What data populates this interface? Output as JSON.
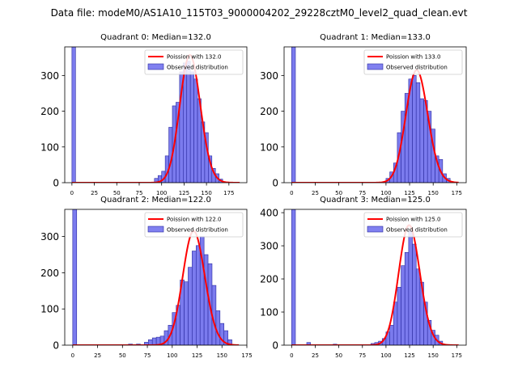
{
  "figure": {
    "title": "Data file: modeM0/AS1A10_115T03_9000004202_29228cztM0_level2_quad_clean.evt"
  },
  "colors": {
    "bar_fill": "#7b7bee",
    "bar_edge": "#2a2aa0",
    "legend_patch": "#8080f0",
    "poisson_line": "#ff0000"
  },
  "chart_data": [
    {
      "type": "bar",
      "title": "Quadrant 0: Median=132.0",
      "xlim": [
        -8,
        195
      ],
      "ylim": [
        0,
        380
      ],
      "xticks": [
        0,
        25,
        50,
        75,
        100,
        125,
        150,
        175
      ],
      "yticks": [
        0,
        100,
        200,
        300
      ],
      "legend": [
        "Poission with 132.0",
        "Observed distribution"
      ],
      "mean": 132.0,
      "bin_width": 4,
      "bins": [
        {
          "x": 0,
          "h": 380
        },
        {
          "x": 92,
          "h": 12
        },
        {
          "x": 96,
          "h": 20
        },
        {
          "x": 100,
          "h": 32
        },
        {
          "x": 104,
          "h": 75
        },
        {
          "x": 108,
          "h": 155
        },
        {
          "x": 112,
          "h": 215
        },
        {
          "x": 116,
          "h": 225
        },
        {
          "x": 120,
          "h": 310
        },
        {
          "x": 124,
          "h": 335
        },
        {
          "x": 128,
          "h": 340
        },
        {
          "x": 132,
          "h": 310
        },
        {
          "x": 136,
          "h": 290
        },
        {
          "x": 140,
          "h": 235
        },
        {
          "x": 144,
          "h": 170
        },
        {
          "x": 148,
          "h": 140
        },
        {
          "x": 152,
          "h": 75
        },
        {
          "x": 156,
          "h": 40
        },
        {
          "x": 160,
          "h": 25
        },
        {
          "x": 164,
          "h": 10
        }
      ]
    },
    {
      "type": "bar",
      "title": "Quadrant 1: Median=133.0",
      "xlim": [
        -8,
        185
      ],
      "ylim": [
        0,
        380
      ],
      "xticks": [
        0,
        25,
        50,
        75,
        100,
        125,
        150,
        175
      ],
      "yticks": [
        0,
        100,
        200,
        300
      ],
      "legend": [
        "Poission with 133.0",
        "Observed distribution"
      ],
      "mean": 133.0,
      "bin_width": 4,
      "bins": [
        {
          "x": 0,
          "h": 380
        },
        {
          "x": 100,
          "h": 12
        },
        {
          "x": 104,
          "h": 30
        },
        {
          "x": 108,
          "h": 55
        },
        {
          "x": 112,
          "h": 140
        },
        {
          "x": 116,
          "h": 200
        },
        {
          "x": 120,
          "h": 250
        },
        {
          "x": 124,
          "h": 290
        },
        {
          "x": 128,
          "h": 300
        },
        {
          "x": 132,
          "h": 280
        },
        {
          "x": 136,
          "h": 235
        },
        {
          "x": 140,
          "h": 230
        },
        {
          "x": 144,
          "h": 200
        },
        {
          "x": 148,
          "h": 150
        },
        {
          "x": 152,
          "h": 75
        },
        {
          "x": 156,
          "h": 65
        },
        {
          "x": 160,
          "h": 25
        },
        {
          "x": 164,
          "h": 12
        }
      ]
    },
    {
      "type": "bar",
      "title": "Quadrant 2: Median=122.0",
      "xlim": [
        -8,
        175
      ],
      "ylim": [
        0,
        375
      ],
      "xticks": [
        0,
        25,
        50,
        75,
        100,
        125,
        150,
        175
      ],
      "yticks": [
        0,
        100,
        200,
        300
      ],
      "legend": [
        "Poission with 122.0",
        "Observed distribution"
      ],
      "mean": 122.0,
      "bin_width": 4,
      "bins": [
        {
          "x": 0,
          "h": 375
        },
        {
          "x": 56,
          "h": 3
        },
        {
          "x": 64,
          "h": 3
        },
        {
          "x": 72,
          "h": 8
        },
        {
          "x": 76,
          "h": 15
        },
        {
          "x": 80,
          "h": 20
        },
        {
          "x": 84,
          "h": 22
        },
        {
          "x": 88,
          "h": 25
        },
        {
          "x": 92,
          "h": 40
        },
        {
          "x": 96,
          "h": 55
        },
        {
          "x": 100,
          "h": 90
        },
        {
          "x": 104,
          "h": 110
        },
        {
          "x": 108,
          "h": 180
        },
        {
          "x": 112,
          "h": 175
        },
        {
          "x": 116,
          "h": 215
        },
        {
          "x": 120,
          "h": 260
        },
        {
          "x": 124,
          "h": 275
        },
        {
          "x": 128,
          "h": 300
        },
        {
          "x": 132,
          "h": 250
        },
        {
          "x": 136,
          "h": 225
        },
        {
          "x": 140,
          "h": 165
        },
        {
          "x": 144,
          "h": 95
        },
        {
          "x": 148,
          "h": 60
        },
        {
          "x": 152,
          "h": 40
        },
        {
          "x": 156,
          "h": 15
        }
      ]
    },
    {
      "type": "bar",
      "title": "Quadrant 3: Median=125.0",
      "xlim": [
        -8,
        185
      ],
      "ylim": [
        0,
        410
      ],
      "xticks": [
        0,
        25,
        50,
        75,
        100,
        125,
        150,
        175
      ],
      "yticks": [
        0,
        100,
        200,
        300,
        400
      ],
      "legend": [
        "Poission with 125.0",
        "Observed distribution"
      ],
      "mean": 125.0,
      "bin_width": 4,
      "bins": [
        {
          "x": 0,
          "h": 410
        },
        {
          "x": 16,
          "h": 8
        },
        {
          "x": 44,
          "h": 3
        },
        {
          "x": 84,
          "h": 5
        },
        {
          "x": 88,
          "h": 8
        },
        {
          "x": 92,
          "h": 12
        },
        {
          "x": 96,
          "h": 20
        },
        {
          "x": 100,
          "h": 40
        },
        {
          "x": 104,
          "h": 60
        },
        {
          "x": 108,
          "h": 130
        },
        {
          "x": 112,
          "h": 175
        },
        {
          "x": 116,
          "h": 240
        },
        {
          "x": 120,
          "h": 280
        },
        {
          "x": 124,
          "h": 345
        },
        {
          "x": 128,
          "h": 305
        },
        {
          "x": 132,
          "h": 230
        },
        {
          "x": 136,
          "h": 190
        },
        {
          "x": 140,
          "h": 130
        },
        {
          "x": 144,
          "h": 75
        },
        {
          "x": 148,
          "h": 45
        },
        {
          "x": 152,
          "h": 30
        },
        {
          "x": 156,
          "h": 12
        }
      ]
    }
  ]
}
